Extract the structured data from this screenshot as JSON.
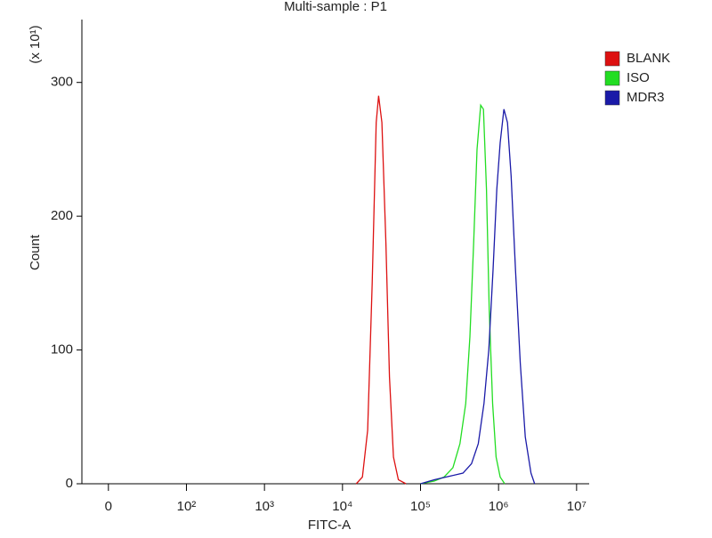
{
  "chart_data": {
    "type": "line",
    "title": "Multi-sample : P1",
    "x_label": "FITC-A",
    "y_label": "Count",
    "y_multiplier": "(x 10¹)",
    "xscale": "biexponential",
    "xlim": [
      -34,
      14500000
    ],
    "ylim": [
      0,
      347
    ],
    "xticks": [
      0,
      {
        "value": 100,
        "label": "10²"
      },
      {
        "value": 1000,
        "label": "10³"
      },
      {
        "value": 10000,
        "label": "10⁴"
      },
      {
        "value": 100000,
        "label": "10⁵"
      },
      {
        "value": 1000000,
        "label": "10⁶"
      },
      {
        "value": 10000000,
        "label": "10⁷"
      }
    ],
    "yticks": [
      0,
      100,
      200,
      300
    ],
    "legend": "right",
    "series": [
      {
        "name": "BLANK",
        "color": "#dd1111",
        "x": [
          15000,
          18000,
          21000,
          24000,
          27000,
          29000,
          32000,
          36000,
          40000,
          45000,
          52000,
          65000
        ],
        "values": [
          0,
          5,
          40,
          150,
          270,
          290,
          270,
          180,
          80,
          20,
          3,
          0
        ]
      },
      {
        "name": "ISO",
        "color": "#22dd22",
        "x": [
          100000,
          150000,
          200000,
          260000,
          320000,
          380000,
          430000,
          480000,
          530000,
          590000,
          640000,
          700000,
          760000,
          840000,
          930000,
          1050000,
          1200000
        ],
        "values": [
          0,
          2,
          5,
          12,
          30,
          60,
          110,
          180,
          250,
          283,
          280,
          220,
          130,
          60,
          20,
          5,
          0
        ]
      },
      {
        "name": "MDR3",
        "color": "#1a1aa8",
        "x": [
          100000,
          150000,
          250000,
          350000,
          450000,
          550000,
          650000,
          750000,
          850000,
          950000,
          1050000,
          1170000,
          1300000,
          1450000,
          1650000,
          1900000,
          2200000,
          2600000,
          2900000
        ],
        "values": [
          0,
          3,
          6,
          8,
          15,
          30,
          60,
          100,
          160,
          220,
          255,
          280,
          270,
          230,
          160,
          90,
          35,
          8,
          0
        ]
      }
    ]
  }
}
